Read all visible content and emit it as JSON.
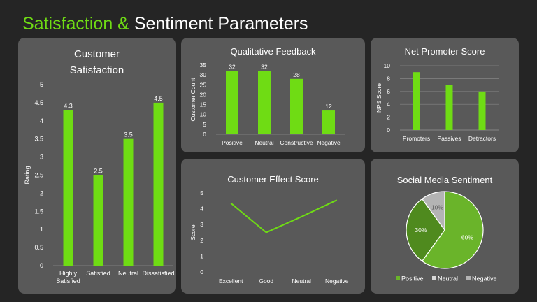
{
  "page": {
    "title_accent": "Satisfaction &",
    "title_rest": "Sentiment Parameters",
    "accent_color": "#6fdc14",
    "background": "#252525",
    "panel_color": "#595959"
  },
  "chart_data": [
    {
      "id": "customer-satisfaction",
      "type": "bar",
      "title_lines": [
        "Customer",
        "Satisfaction"
      ],
      "categories": [
        [
          "Highly",
          "Satisfied"
        ],
        [
          "Satisfied"
        ],
        [
          "Neutral"
        ],
        [
          "Dissatisfied"
        ]
      ],
      "values": [
        4.3,
        2.5,
        3.5,
        4.5
      ],
      "value_labels": [
        "4.3",
        "2.5",
        "3.5",
        "4.5"
      ],
      "ylabel": "Rating",
      "ylim": [
        0,
        5
      ],
      "yticks": [
        "0",
        "0.5",
        "1",
        "1.5",
        "2",
        "2.5",
        "3",
        "3.5",
        "4",
        "4.5",
        "5"
      ],
      "grid": false,
      "color": "#6fdc14"
    },
    {
      "id": "qualitative-feedback",
      "type": "bar",
      "title_lines": [
        "Qualitative Feedback"
      ],
      "categories": [
        [
          "Positive"
        ],
        [
          "Neutral"
        ],
        [
          "Constructive"
        ],
        [
          "Negative"
        ]
      ],
      "values": [
        32,
        32,
        28,
        12
      ],
      "value_labels": [
        "32",
        "32",
        "28",
        "12"
      ],
      "ylabel": "Customer Count",
      "ylim": [
        0,
        35
      ],
      "yticks": [
        "0",
        "5",
        "10",
        "15",
        "20",
        "25",
        "30",
        "35"
      ],
      "grid": false,
      "color": "#6fdc14"
    },
    {
      "id": "net-promoter-score",
      "type": "bar",
      "title_lines": [
        "Net Promoter Score"
      ],
      "categories": [
        [
          "Promoters"
        ],
        [
          "Passives"
        ],
        [
          "Detractors"
        ]
      ],
      "values": [
        9,
        7,
        6
      ],
      "ylabel": "NPS Score",
      "ylim": [
        0,
        10
      ],
      "yticks": [
        "0",
        "2",
        "4",
        "6",
        "8",
        "10"
      ],
      "grid": true,
      "color": "#6fdc14"
    },
    {
      "id": "customer-effect-score",
      "type": "line",
      "title_lines": [
        "Customer Effect Score"
      ],
      "categories": [
        "Excellent",
        "Good",
        "Neutral",
        "Negative"
      ],
      "values": [
        4.35,
        2.5,
        3.5,
        4.55
      ],
      "ylabel": "Score",
      "ylim": [
        0,
        5
      ],
      "yticks": [
        "0",
        "1",
        "2",
        "3",
        "4",
        "5"
      ],
      "grid": false,
      "color": "#6fdc14"
    },
    {
      "id": "social-media-sentiment",
      "type": "pie",
      "title_lines": [
        "Social Media Sentiment"
      ],
      "slices": [
        {
          "name": "Positive",
          "value": 60,
          "label": "60%",
          "color": "#6ab42a"
        },
        {
          "name": "Neutral",
          "value": 30,
          "label": "30%",
          "color": "#4f8a1e"
        },
        {
          "name": "Negative",
          "value": 10,
          "label": "10%",
          "color": "#b4b4b4"
        }
      ],
      "legend": [
        "Positive",
        "Neutral",
        "Negative"
      ],
      "legend_colors": [
        "#6ab42a",
        "#d8d8d8",
        "#b4b4b4"
      ]
    }
  ]
}
